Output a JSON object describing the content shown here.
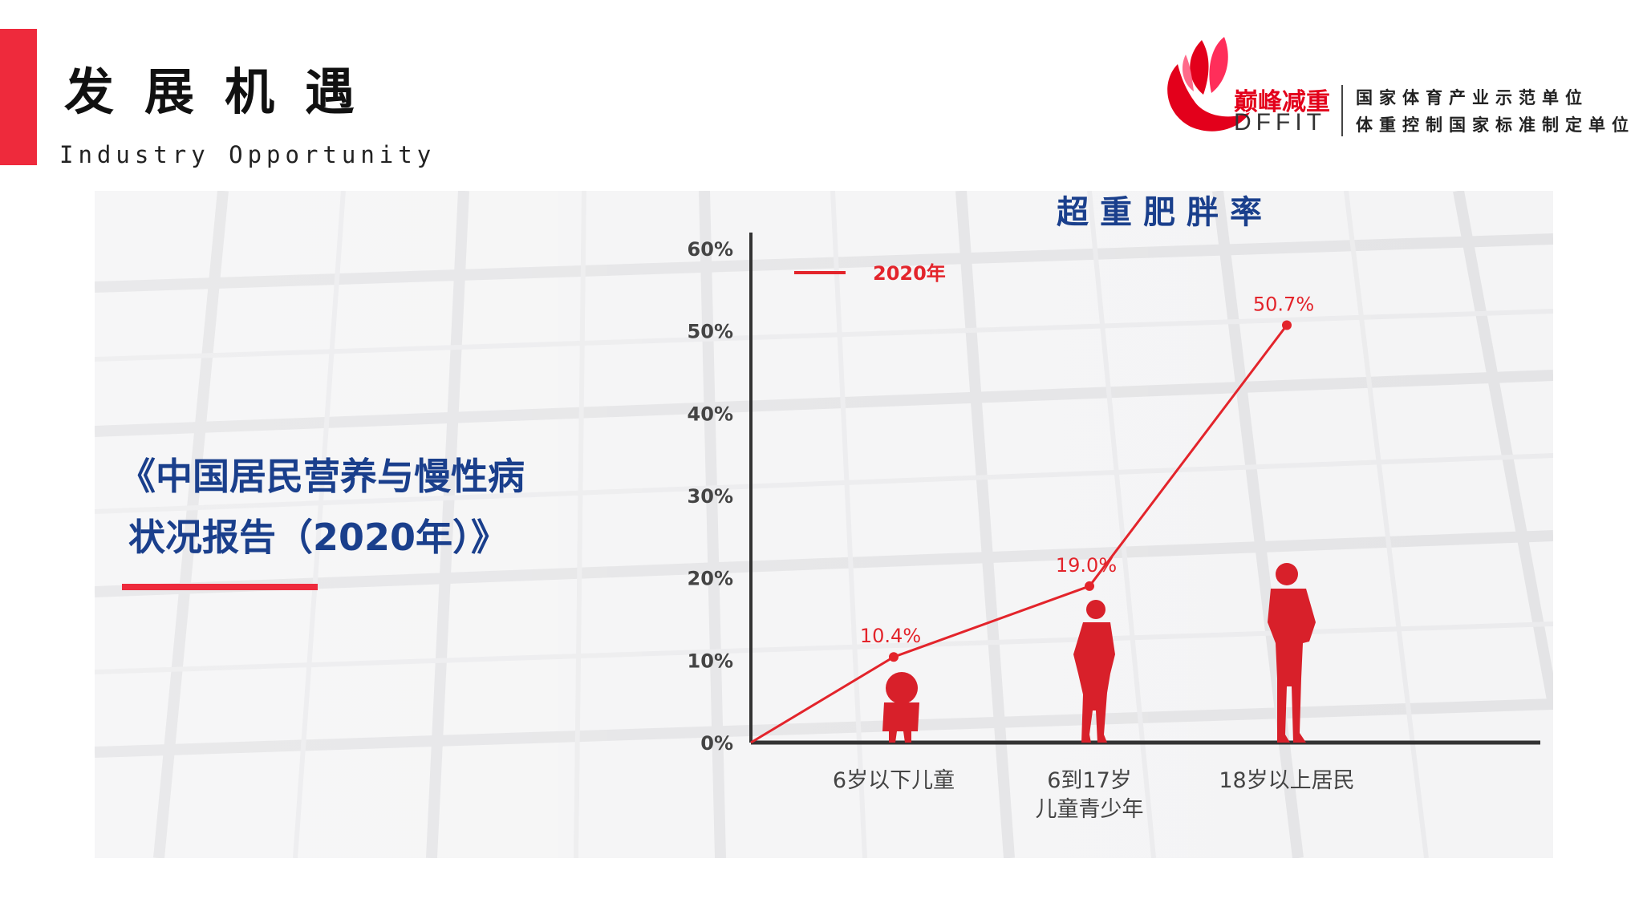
{
  "header": {
    "title": "发展机遇",
    "subtitle": "Industry Opportunity"
  },
  "logo": {
    "brand_cn": "巅峰减重",
    "brand_en": "DFFIT",
    "slogan_line1": "国家体育产业示范单位",
    "slogan_line2": "体重控制国家标准制定单位",
    "accent_color": "#e3001b"
  },
  "report": {
    "title_line1": "《中国居民营养与慢性病",
    "title_line2": "状况报告（2020年）》",
    "color": "#1a3f8c",
    "underline_color": "#ee2a3c"
  },
  "chart_data": {
    "type": "line",
    "title": "超重肥胖率",
    "categories": [
      "6岁以下儿童",
      "6到17岁\n儿童青少年",
      "18岁以上居民"
    ],
    "x_labels": [
      [
        "6岁以下儿童"
      ],
      [
        "6到17岁",
        "儿童青少年"
      ],
      [
        "18岁以上居民"
      ]
    ],
    "series": [
      {
        "name": "2020年",
        "values": [
          10.4,
          19.0,
          50.7
        ],
        "color": "#e3242b"
      }
    ],
    "data_labels": [
      "10.4%",
      "19.0%",
      "50.7%"
    ],
    "y_ticks": [
      "0%",
      "10%",
      "20%",
      "30%",
      "40%",
      "50%",
      "60%"
    ],
    "ylim": [
      0,
      60
    ],
    "line_starts_at_origin": true,
    "legend_position": "top-left",
    "grid": false,
    "figure_icons": [
      "child-silhouette-icon",
      "teen-runner-silhouette-icon",
      "adult-silhouette-icon"
    ]
  }
}
